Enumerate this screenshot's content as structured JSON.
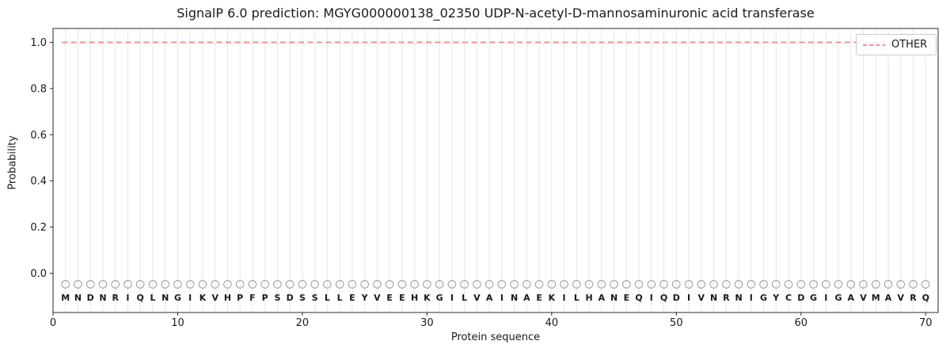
{
  "figure": {
    "background": "#ffffff"
  },
  "chart_data": {
    "type": "line",
    "title": "SignalP 6.0 prediction: MGYG000000138_02350 UDP-N-acetyl-D-mannosaminuronic acid transferase",
    "xlabel": "Protein sequence",
    "ylabel": "Probability",
    "xlim": [
      0,
      71
    ],
    "ylim": [
      -0.17,
      1.06
    ],
    "x_ticks": {
      "values": [
        0,
        10,
        20,
        30,
        40,
        50,
        60,
        70
      ],
      "labels": [
        "0",
        "10",
        "20",
        "30",
        "40",
        "50",
        "60",
        "70"
      ]
    },
    "y_ticks": {
      "values": [
        0.0,
        0.2,
        0.4,
        0.6,
        0.8,
        1.0
      ],
      "labels": [
        "0.0",
        "0.2",
        "0.4",
        "0.6",
        "0.8",
        "1.0"
      ]
    },
    "grid": {
      "vertical_per_residue": true,
      "color": "#e7e7e7",
      "horizontal": false
    },
    "sequence": "MNDNRIQLNGIKVHPFPSDSSLLEYVEEHKGILVAINAEKILHANEQIQDIVNRNIGYCDGIGAVMAVRQ",
    "series": [
      {
        "name": "OTHER",
        "kind": "hline",
        "y": 1.0,
        "x_start": 0.7,
        "x_end": 70.3,
        "style": "dashed",
        "color": "#f08080"
      }
    ],
    "residue_markers": {
      "shape": "open-circle",
      "color": "#999999",
      "y": -0.048,
      "radius": 4.8
    },
    "residue_labels": {
      "y": -0.105,
      "color": "#1a1a1a"
    },
    "legend": {
      "location": "upper right",
      "entries": [
        {
          "label": "OTHER",
          "style": "dashed",
          "color": "#f08080"
        }
      ]
    },
    "axis": {
      "spine_color": "#2a2a2a",
      "tick_color": "#2a2a2a",
      "tick_label_color": "#1a1a1a"
    }
  }
}
